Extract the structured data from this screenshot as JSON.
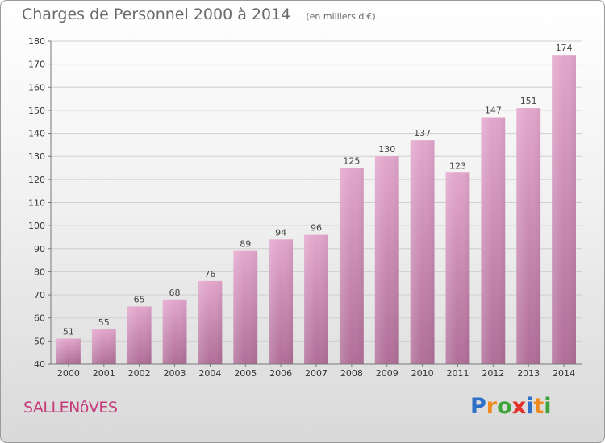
{
  "title": "Charges de Personnel 2000 à 2014",
  "subtitle": "(en milliers d'€)",
  "commune": "SALLENôVES",
  "logo": {
    "text": "Proxiti",
    "letters": [
      "P",
      "r",
      "o",
      "x",
      "i",
      "t",
      "i"
    ],
    "colors": [
      "#2e6fc7",
      "#f08a1c",
      "#3da33a",
      "#e2302a",
      "#2e6fc7",
      "#f08a1c",
      "#3da33a"
    ]
  },
  "chart_data": {
    "type": "bar",
    "title": "Charges de Personnel 2000 à 2014",
    "subtitle": "(en milliers d'€)",
    "categories": [
      "2000",
      "2001",
      "2002",
      "2003",
      "2004",
      "2005",
      "2006",
      "2007",
      "2008",
      "2009",
      "2010",
      "2011",
      "2012",
      "2013",
      "2014"
    ],
    "values": [
      51,
      55,
      65,
      68,
      76,
      89,
      94,
      96,
      125,
      130,
      137,
      123,
      147,
      151,
      174
    ],
    "ylim": [
      40,
      180
    ],
    "yticks": [
      40,
      50,
      60,
      70,
      80,
      90,
      100,
      110,
      120,
      130,
      140,
      150,
      160,
      170,
      180
    ],
    "grid": true,
    "bar_color": "#d98bb8"
  }
}
